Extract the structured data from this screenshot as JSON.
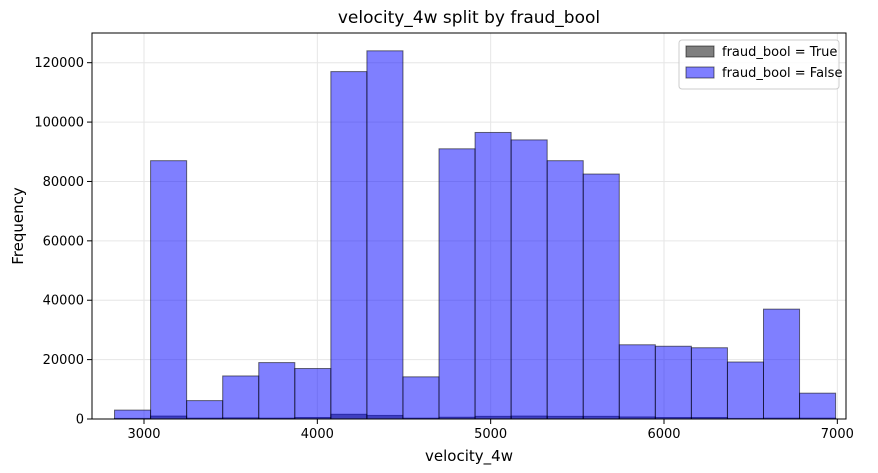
{
  "chart_data": {
    "type": "histogram",
    "title": "velocity_4w split by fraud_bool",
    "xlabel": "velocity_4w",
    "ylabel": "Frequency",
    "xlim": [
      2700,
      7050
    ],
    "ylim": [
      0,
      130000
    ],
    "x_ticks": [
      3000,
      4000,
      5000,
      6000,
      7000
    ],
    "x_tick_labels": [
      "3000",
      "4000",
      "5000",
      "6000",
      "7000"
    ],
    "y_ticks": [
      0,
      20000,
      40000,
      60000,
      80000,
      100000,
      120000
    ],
    "y_tick_labels": [
      "0",
      "20000",
      "40000",
      "60000",
      "80000",
      "100000",
      "120000"
    ],
    "grid": true,
    "legend_position": "top-right",
    "bin_edges": [
      2830,
      3038,
      3246,
      3454,
      3662,
      3870,
      4078,
      4286,
      4494,
      4702,
      4910,
      5118,
      5326,
      5534,
      5742,
      5950,
      6158,
      6366,
      6574,
      6782,
      6990
    ],
    "series": [
      {
        "name": "fraud_bool = True",
        "color": "#000000",
        "opacity": 0.5,
        "values": [
          200,
          1000,
          300,
          400,
          300,
          500,
          1600,
          1200,
          300,
          600,
          900,
          1000,
          900,
          900,
          700,
          500,
          500,
          200,
          300,
          300
        ]
      },
      {
        "name": "fraud_bool = False",
        "color": "#0000ff",
        "opacity": 0.5,
        "values": [
          3000,
          87000,
          6200,
          14500,
          19000,
          17000,
          117000,
          124000,
          14200,
          91000,
          96500,
          94000,
          87000,
          82500,
          25000,
          24500,
          24000,
          19200,
          37000,
          8700
        ]
      }
    ]
  }
}
